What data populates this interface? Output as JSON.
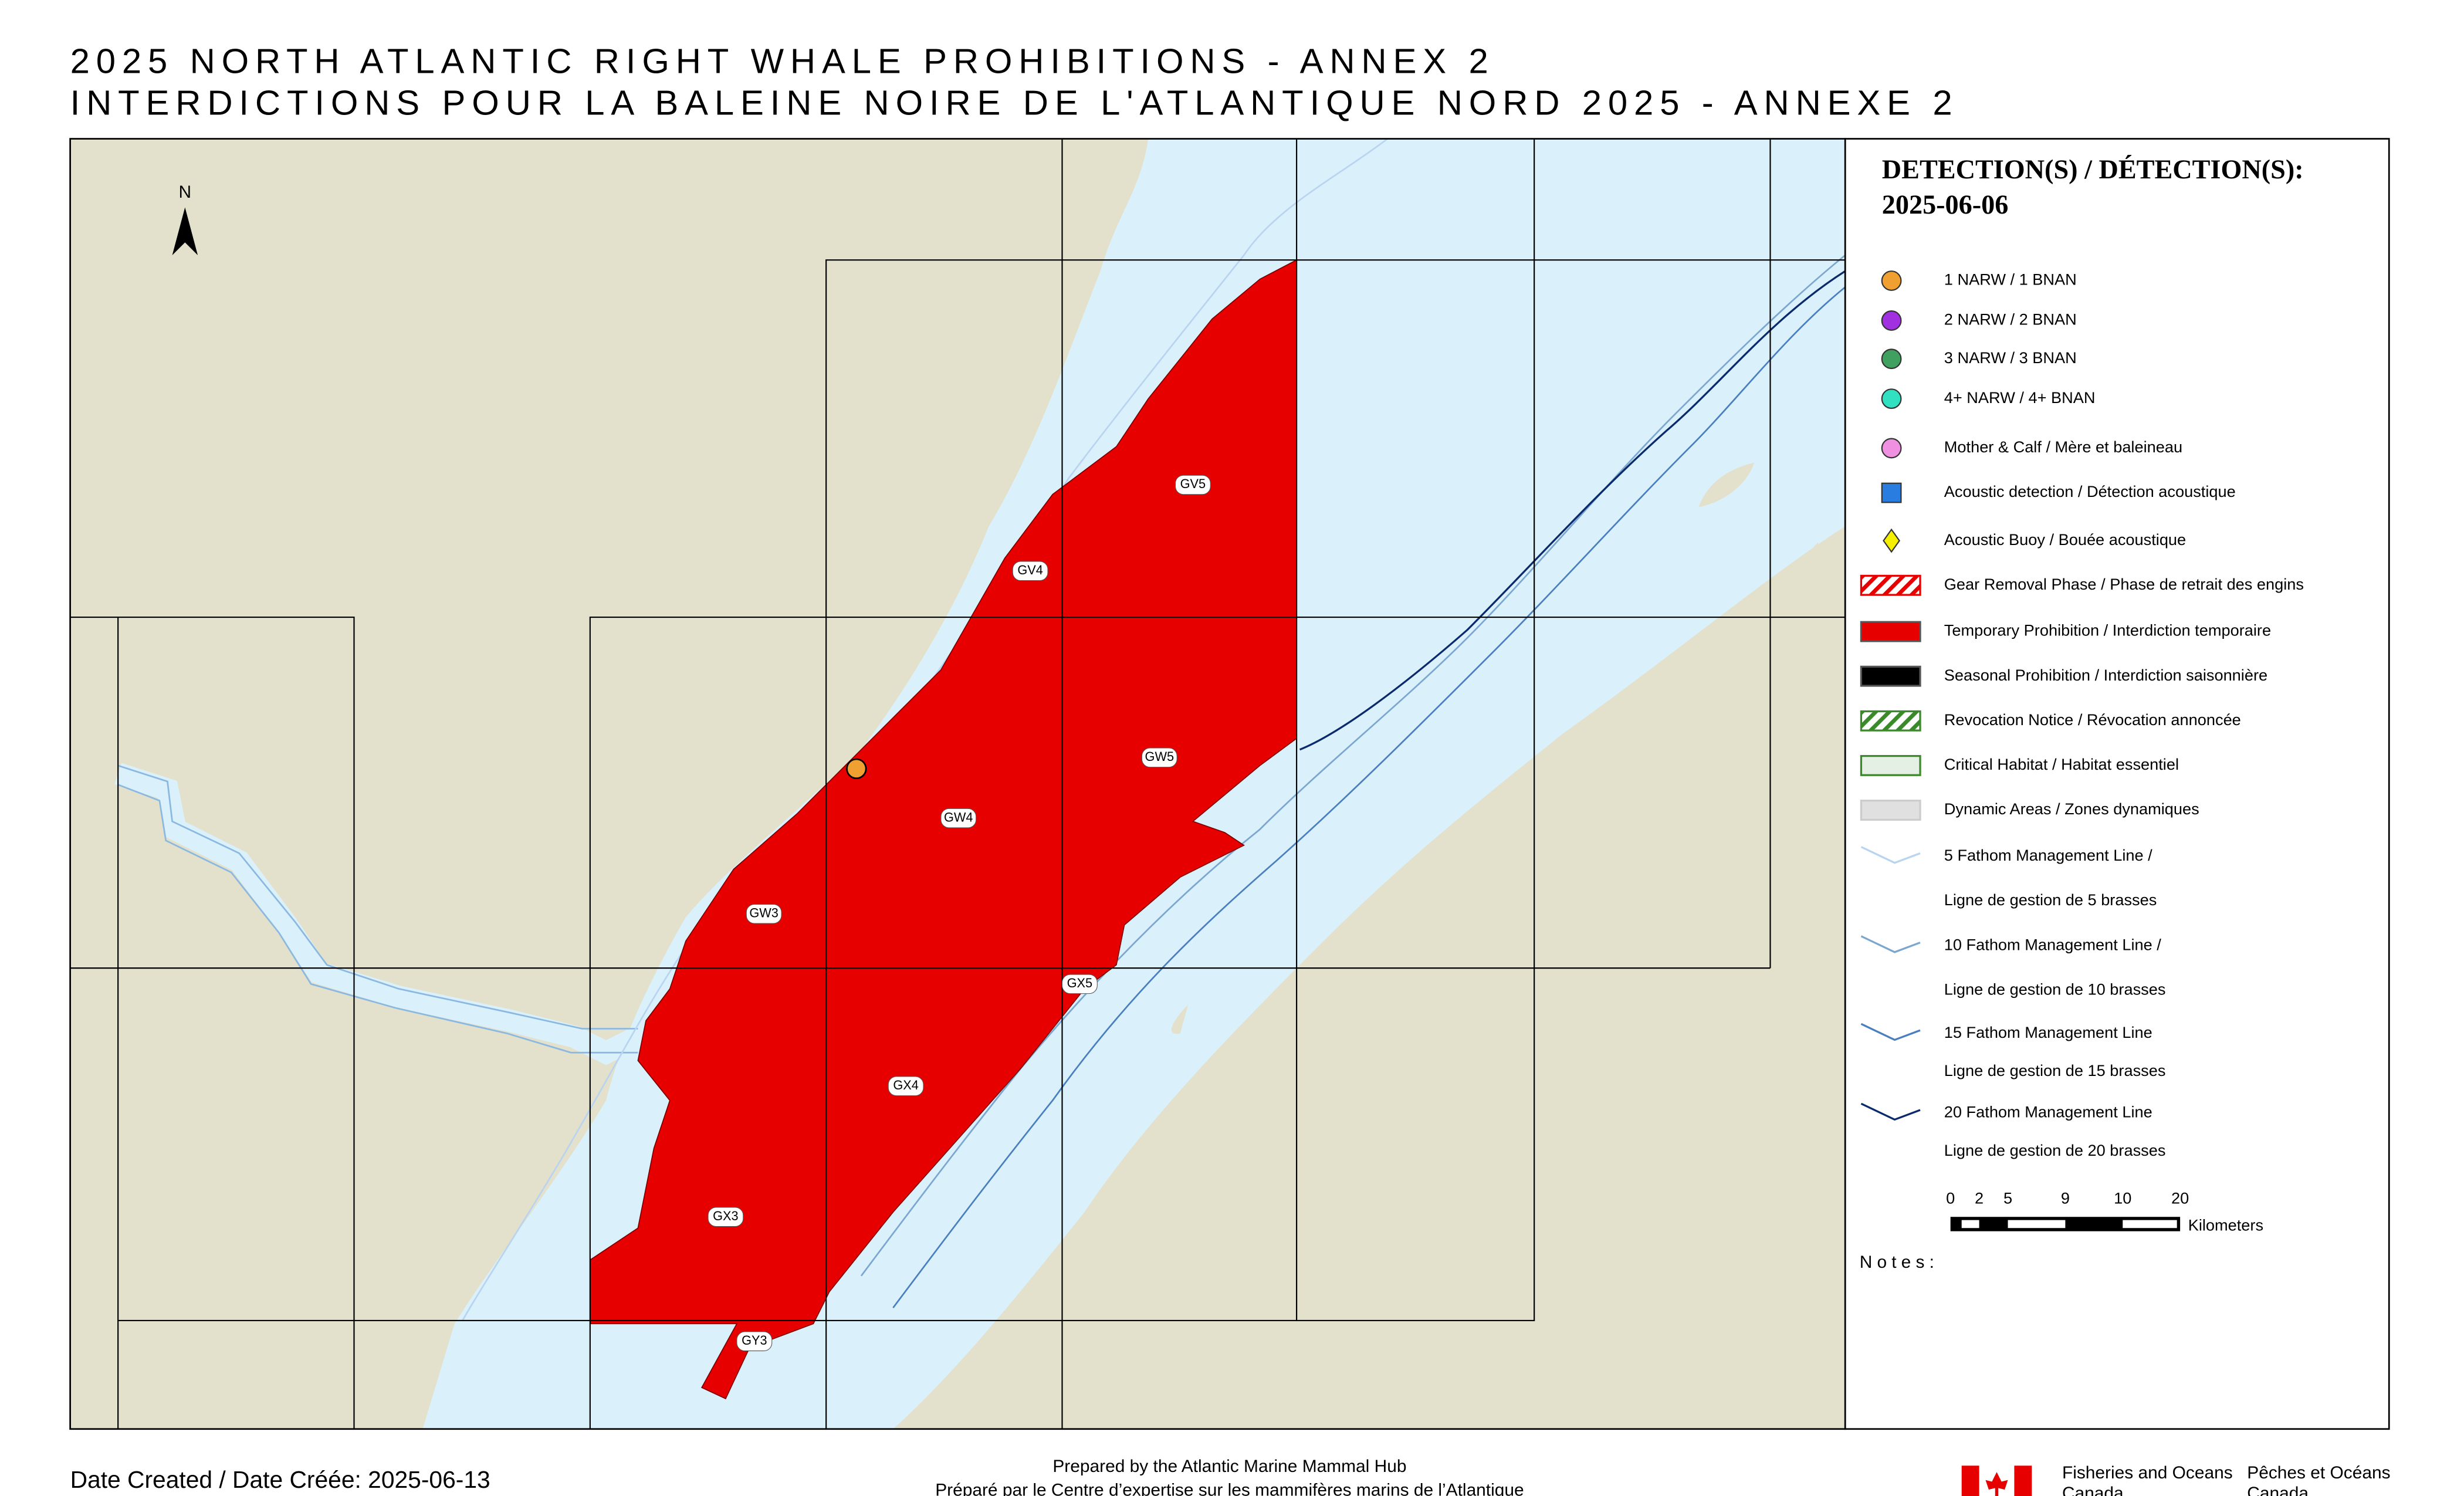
{
  "header": {
    "title_en": "2025 NORTH ATLANTIC RIGHT WHALE PROHIBITIONS - ANNEX 2",
    "title_fr": "INTERDICTIONS POUR LA BALEINE NOIRE DE L'ATLANTIQUE NORD 2025 - ANNEXE 2"
  },
  "map": {
    "north_label": "N",
    "grid_labels": [
      "GV5",
      "GV4",
      "GW5",
      "GW4",
      "GW3",
      "GX5",
      "GX4",
      "GX3",
      "GY3"
    ]
  },
  "legend": {
    "title": "DETECTION(S) / DÉTECTION(S):",
    "date": "2025-06-06",
    "items": [
      [
        "1 NARW / 1 BNAN"
      ],
      [
        "2 NARW / 2 BNAN"
      ],
      [
        "3 NARW / 3 BNAN"
      ],
      [
        "4+ NARW / 4+ BNAN"
      ],
      [
        "Mother & Calf / Mère et baleineau"
      ],
      [
        "Acoustic detection / Détection acoustique"
      ],
      [
        "Acoustic Buoy / Bouée acoustique"
      ],
      [
        "Gear Removal Phase / Phase de retrait des engins"
      ],
      [
        "Temporary Prohibition / Interdiction temporaire"
      ],
      [
        "Seasonal Prohibition / Interdiction saisonnière"
      ],
      [
        "Revocation Notice / Révocation annoncée"
      ],
      [
        "Critical Habitat / Habitat essentiel"
      ],
      [
        "Dynamic Areas / Zones dynamiques"
      ],
      [
        "5 Fathom Management Line /",
        "Ligne de gestion de 5 brasses"
      ],
      [
        "10 Fathom Management Line /",
        "Ligne de gestion de 10 brasses"
      ],
      [
        "15 Fathom Management Line",
        "Ligne de gestion de 15 brasses"
      ],
      [
        "20 Fathom Management Line",
        "Ligne de gestion de 20 brasses"
      ]
    ],
    "scale": {
      "ticks": [
        0,
        2,
        5,
        9,
        10,
        20
      ],
      "unit": "Kilometers"
    },
    "notes_label": "Notes:"
  },
  "footer": {
    "date_created": "Date Created / Date Créée: 2025-06-13",
    "prepared_en": "Prepared by the Atlantic Marine Mammal Hub",
    "prepared_fr": "Préparé par le Centre d’expertise sur les mammifères marins de l’Atlantique",
    "dept_en": [
      "Fisheries and Oceans",
      "Canada"
    ],
    "dept_fr": [
      "Pêches et Océans",
      "Canada"
    ]
  }
}
